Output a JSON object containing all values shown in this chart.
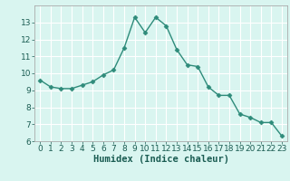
{
  "x": [
    0,
    1,
    2,
    3,
    4,
    5,
    6,
    7,
    8,
    9,
    10,
    11,
    12,
    13,
    14,
    15,
    16,
    17,
    18,
    19,
    20,
    21,
    22,
    23
  ],
  "y": [
    9.6,
    9.2,
    9.1,
    9.1,
    9.3,
    9.5,
    9.9,
    10.2,
    11.5,
    13.3,
    12.4,
    13.3,
    12.8,
    11.4,
    10.5,
    10.4,
    9.2,
    8.7,
    8.7,
    7.6,
    7.4,
    7.1,
    7.1,
    6.3
  ],
  "line_color": "#2e8b7a",
  "marker": "D",
  "marker_size": 2.5,
  "bg_color": "#d9f5f0",
  "grid_color": "#ffffff",
  "grid_minor_color": "#e8faf6",
  "xlabel": "Humidex (Indice chaleur)",
  "ylim": [
    6,
    14
  ],
  "xlim": [
    -0.5,
    23.5
  ],
  "yticks": [
    6,
    7,
    8,
    9,
    10,
    11,
    12,
    13
  ],
  "xticks": [
    0,
    1,
    2,
    3,
    4,
    5,
    6,
    7,
    8,
    9,
    10,
    11,
    12,
    13,
    14,
    15,
    16,
    17,
    18,
    19,
    20,
    21,
    22,
    23
  ],
  "tick_labelsize": 6.5,
  "xlabel_fontsize": 7.5,
  "spine_color": "#aaaaaa"
}
